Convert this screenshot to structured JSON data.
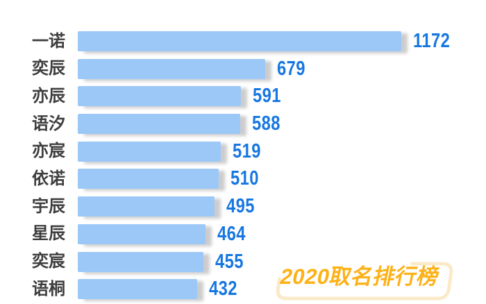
{
  "chart_data": {
    "type": "bar",
    "orientation": "horizontal",
    "title": "2020取名排行榜",
    "categories": [
      "一诺",
      "奕辰",
      "亦辰",
      "语汐",
      "亦宸",
      "依诺",
      "宇辰",
      "星辰",
      "奕宸",
      "语桐"
    ],
    "values": [
      1172,
      679,
      591,
      588,
      519,
      510,
      495,
      464,
      455,
      432
    ],
    "xlim": [
      0,
      1172
    ],
    "grid": false,
    "legend": false,
    "value_labels": "end-of-bar",
    "colors": {
      "bar": "#9cc8f8",
      "value_text": "#1777e1",
      "category_text": "#3d3d3d",
      "background": "#ffffff"
    }
  },
  "badge": {
    "title": "2020取名排行榜",
    "text_color": "#fdb116",
    "outline_color": "#faeac8"
  }
}
